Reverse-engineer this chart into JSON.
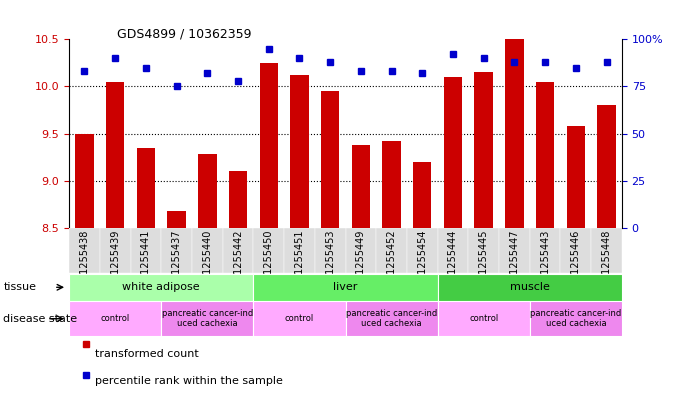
{
  "title": "GDS4899 / 10362359",
  "samples": [
    "GSM1255438",
    "GSM1255439",
    "GSM1255441",
    "GSM1255437",
    "GSM1255440",
    "GSM1255442",
    "GSM1255450",
    "GSM1255451",
    "GSM1255453",
    "GSM1255449",
    "GSM1255452",
    "GSM1255454",
    "GSM1255444",
    "GSM1255445",
    "GSM1255447",
    "GSM1255443",
    "GSM1255446",
    "GSM1255448"
  ],
  "transformed_count": [
    9.5,
    10.05,
    9.35,
    8.68,
    9.28,
    9.1,
    10.25,
    10.12,
    9.95,
    9.38,
    9.42,
    9.2,
    10.1,
    10.15,
    10.5,
    10.05,
    9.58,
    9.8
  ],
  "percentile_rank": [
    83,
    90,
    85,
    75,
    82,
    78,
    95,
    90,
    88,
    83,
    83,
    82,
    92,
    90,
    88,
    88,
    85,
    88
  ],
  "bar_color": "#cc0000",
  "dot_color": "#0000cc",
  "ylim_left": [
    8.5,
    10.5
  ],
  "ylim_right": [
    0,
    100
  ],
  "yticks_left": [
    8.5,
    9.0,
    9.5,
    10.0,
    10.5
  ],
  "yticks_right": [
    0,
    25,
    50,
    75,
    100
  ],
  "ytick_labels_right": [
    "0",
    "25",
    "50",
    "75",
    "100%"
  ],
  "grid_values": [
    9.0,
    9.5,
    10.0
  ],
  "tissue_groups": [
    {
      "label": "white adipose",
      "start": 0,
      "end": 6,
      "color": "#aaffaa"
    },
    {
      "label": "liver",
      "start": 6,
      "end": 12,
      "color": "#66ee66"
    },
    {
      "label": "muscle",
      "start": 12,
      "end": 18,
      "color": "#44cc44"
    }
  ],
  "disease_groups": [
    {
      "label": "control",
      "start": 0,
      "end": 3,
      "color": "#ffaaff"
    },
    {
      "label": "pancreatic cancer-ind\nuced cachexia",
      "start": 3,
      "end": 6,
      "color": "#ee88ee"
    },
    {
      "label": "control",
      "start": 6,
      "end": 9,
      "color": "#ffaaff"
    },
    {
      "label": "pancreatic cancer-ind\nuced cachexia",
      "start": 9,
      "end": 12,
      "color": "#ee88ee"
    },
    {
      "label": "control",
      "start": 12,
      "end": 15,
      "color": "#ffaaff"
    },
    {
      "label": "pancreatic cancer-ind\nuced cachexia",
      "start": 15,
      "end": 18,
      "color": "#ee88ee"
    }
  ],
  "tissue_label": "tissue",
  "disease_label": "disease state",
  "legend_bar_label": "transformed count",
  "legend_dot_label": "percentile rank within the sample",
  "bar_width": 0.6,
  "background_color": "#ffffff",
  "label_color_left": "#cc0000",
  "label_color_right": "#0000cc",
  "xticklabel_bg": "#dddddd",
  "title_fontsize": 9,
  "tick_fontsize": 7,
  "row_fontsize": 8,
  "legend_fontsize": 8
}
